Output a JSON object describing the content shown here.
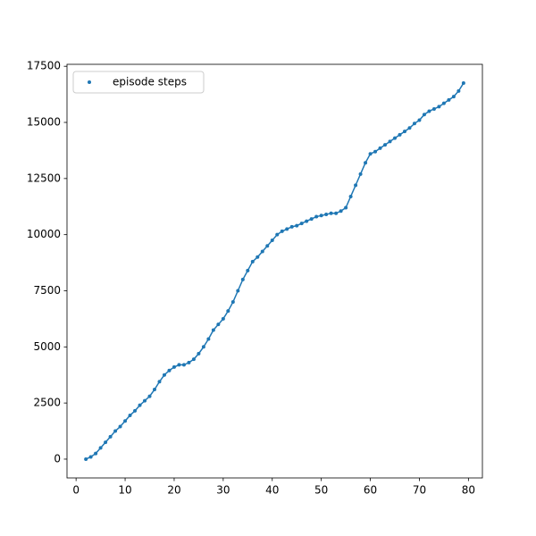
{
  "chart_data": {
    "type": "scatter",
    "line": true,
    "x": [
      2,
      3,
      4,
      5,
      6,
      7,
      8,
      9,
      10,
      11,
      12,
      13,
      14,
      15,
      16,
      17,
      18,
      19,
      20,
      21,
      22,
      23,
      24,
      25,
      26,
      27,
      28,
      29,
      30,
      31,
      32,
      33,
      34,
      35,
      36,
      37,
      38,
      39,
      40,
      41,
      42,
      43,
      44,
      45,
      46,
      47,
      48,
      49,
      50,
      51,
      52,
      53,
      54,
      55,
      56,
      57,
      58,
      59,
      60,
      61,
      62,
      63,
      64,
      65,
      66,
      67,
      68,
      69,
      70,
      71,
      72,
      73,
      74,
      75,
      76,
      77,
      78,
      79
    ],
    "series": [
      {
        "name": "episode steps",
        "color": "#1f77b4",
        "values": [
          0,
          100,
          250,
          500,
          750,
          1000,
          1250,
          1450,
          1700,
          1950,
          2150,
          2400,
          2600,
          2800,
          3100,
          3450,
          3750,
          3950,
          4100,
          4200,
          4200,
          4300,
          4450,
          4700,
          5000,
          5350,
          5750,
          6000,
          6250,
          6600,
          7000,
          7500,
          8000,
          8400,
          8800,
          9000,
          9250,
          9500,
          9750,
          10000,
          10150,
          10250,
          10350,
          10400,
          10500,
          10600,
          10700,
          10800,
          10850,
          10900,
          10950,
          10950,
          11050,
          11200,
          11700,
          12200,
          12700,
          13200,
          13600,
          13700,
          13850,
          14000,
          14150,
          14300,
          14450,
          14600,
          14750,
          14950,
          15100,
          15350,
          15500,
          15600,
          15700,
          15850,
          16000,
          16150,
          16400,
          16750
        ]
      }
    ],
    "xlim": [
      -1.85,
      82.85
    ],
    "ylim": [
      -837.5,
      17587.5
    ],
    "xticks": [
      0,
      10,
      20,
      30,
      40,
      50,
      60,
      70,
      80
    ],
    "yticks": [
      0,
      2500,
      5000,
      7500,
      10000,
      12500,
      15000,
      17500
    ],
    "legend": "upper left"
  }
}
